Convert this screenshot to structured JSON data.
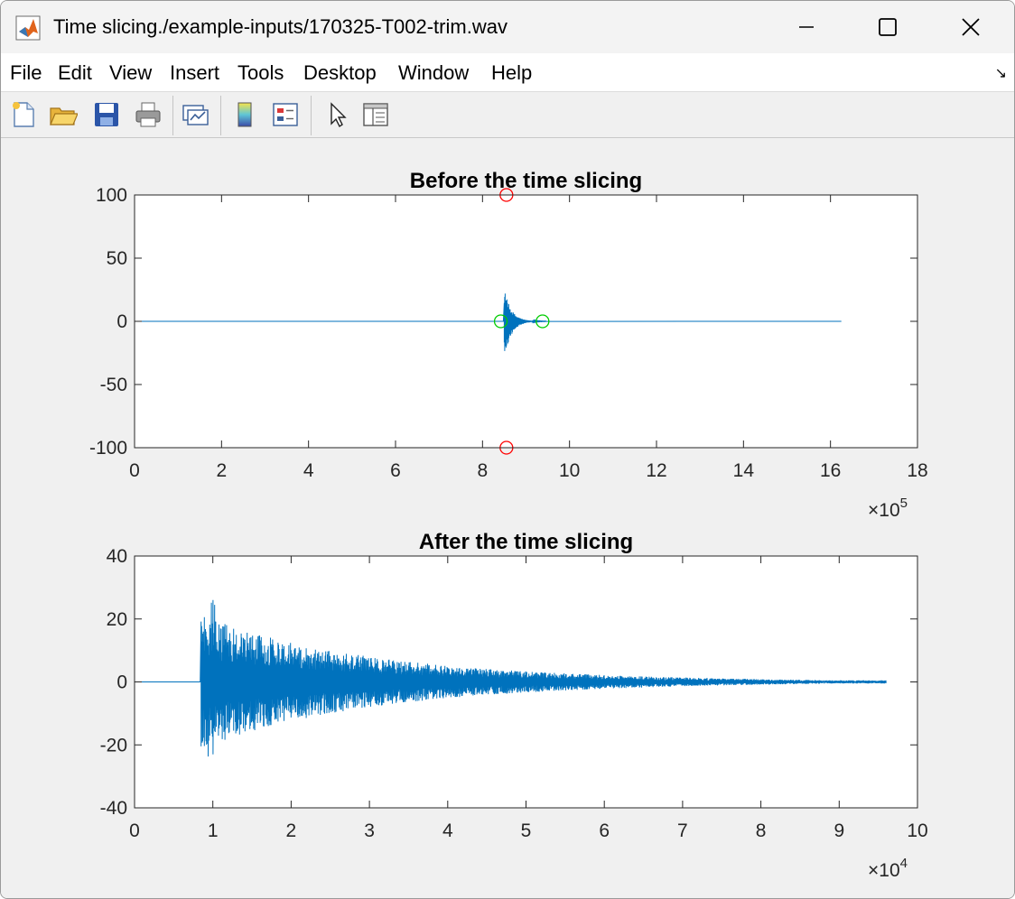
{
  "window": {
    "title": "Time slicing./example-inputs/170325-T002-trim.wav",
    "controls": [
      "minimize",
      "maximize",
      "close"
    ]
  },
  "menu": [
    "File",
    "Edit",
    "View",
    "Insert",
    "Tools",
    "Desktop",
    "Window",
    "Help"
  ],
  "toolbar": {
    "icons": [
      "new-figure-icon",
      "open-file-icon",
      "save-icon",
      "print-icon",
      "link-plot-icon",
      "insert-colorbar-icon",
      "insert-legend-icon",
      "edit-plot-pointer-icon",
      "property-inspector-icon"
    ]
  },
  "chart_data": [
    {
      "type": "line",
      "title": "Before the time slicing",
      "xlabel": "",
      "ylabel": "",
      "xlim": [
        0,
        1800000
      ],
      "ylim": [
        -100,
        100
      ],
      "x_exponent_label": "×10",
      "x_exponent": "5",
      "xticks": [
        0,
        2,
        4,
        6,
        8,
        10,
        12,
        14,
        16,
        18
      ],
      "yticks": [
        -100,
        -50,
        0,
        50,
        100
      ],
      "grid": false,
      "series": [
        {
          "style": "line",
          "color": "#0072bd",
          "signal_start": 0,
          "signal_end": 1625000,
          "burst_start": 850000,
          "burst_peak_positive": 26,
          "burst_peak_negative": -30,
          "burst_duration": 96000
        },
        {
          "style": "marker-circle",
          "color": "#ff0000",
          "points": [
            [
              855000,
              100
            ],
            [
              855000,
              -100
            ]
          ]
        },
        {
          "style": "marker-circle",
          "color": "#00cc00",
          "points": [
            [
              842000,
              0
            ],
            [
              938000,
              0
            ]
          ]
        }
      ]
    },
    {
      "type": "line",
      "title": "After the time slicing",
      "xlabel": "",
      "ylabel": "",
      "xlim": [
        0,
        100000
      ],
      "ylim": [
        -40,
        40
      ],
      "x_exponent_label": "×10",
      "x_exponent": "4",
      "xticks": [
        0,
        1,
        2,
        3,
        4,
        5,
        6,
        7,
        8,
        9,
        10
      ],
      "yticks": [
        -40,
        -20,
        0,
        20,
        40
      ],
      "grid": false,
      "series": [
        {
          "style": "line",
          "color": "#0072bd",
          "signal_start": 0,
          "signal_end": 96000,
          "burst_start": 8500,
          "burst_peak_positive": 26,
          "burst_peak_negative": -30,
          "decay_to": 0.5
        }
      ]
    }
  ]
}
